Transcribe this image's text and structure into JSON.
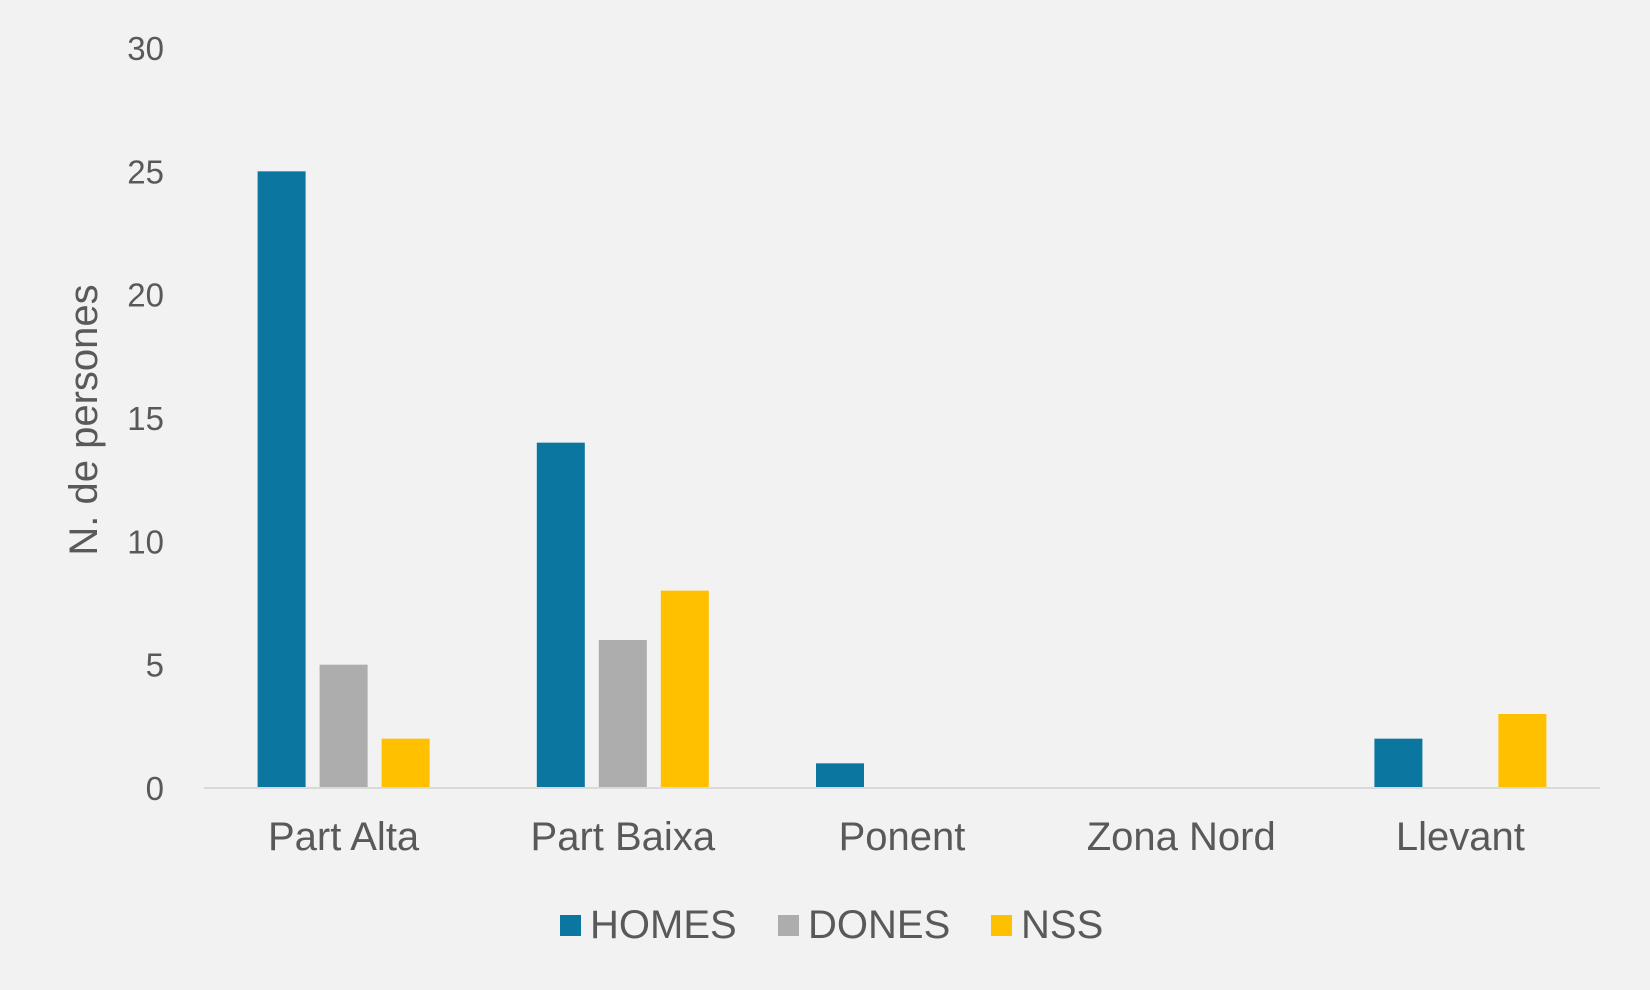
{
  "chart_data": {
    "type": "bar",
    "categories": [
      "Part Alta",
      "Part Baixa",
      "Ponent",
      "Zona Nord",
      "Llevant"
    ],
    "series": [
      {
        "name": "HOMES",
        "color": "#0b769f",
        "values": [
          25,
          14,
          1,
          0,
          2
        ]
      },
      {
        "name": "DONES",
        "color": "#adadad",
        "values": [
          5,
          6,
          0,
          0,
          0
        ]
      },
      {
        "name": "NSS",
        "color": "#ffc000",
        "values": [
          2,
          8,
          0,
          0,
          3
        ]
      }
    ],
    "ylabel": "N. de persones",
    "xlabel": "",
    "ylim": [
      0,
      30
    ],
    "yticks": [
      0,
      5,
      10,
      15,
      20,
      25,
      30
    ],
    "grid": false,
    "legend_position": "bottom",
    "colors": {
      "background": "#f2f2f2",
      "text": "#595959",
      "axis": "#d9d9d9"
    }
  }
}
